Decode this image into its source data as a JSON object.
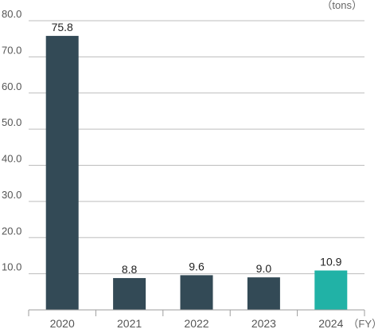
{
  "chart_data": {
    "type": "bar",
    "categories": [
      "2020",
      "2021",
      "2022",
      "2023",
      "2024"
    ],
    "values": [
      75.8,
      8.8,
      9.6,
      9.0,
      10.9
    ],
    "value_labels": [
      "75.8",
      "8.8",
      "9.6",
      "9.0",
      "10.9"
    ],
    "y_ticks": [
      "10.0",
      "20.0",
      "30.0",
      "40.0",
      "50.0",
      "60.0",
      "70.0",
      "80.0"
    ],
    "ylim": [
      0,
      80
    ],
    "y_unit": "（tons）",
    "x_unit": "（FY）",
    "grid": true,
    "colors": {
      "bar": "#334a56",
      "highlight": "#21b2a6",
      "grid": "#bdbdbd"
    },
    "highlight_index": 4
  }
}
